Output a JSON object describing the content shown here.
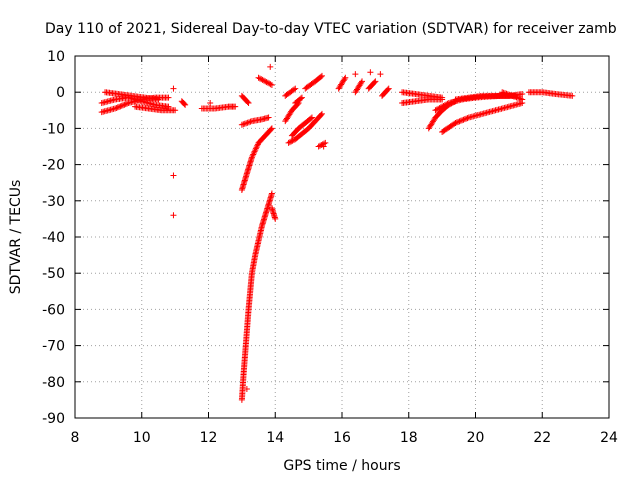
{
  "chart_data": {
    "type": "scatter",
    "title": "Day 110 of 2021, Sidereal Day-to-day VTEC variation (SDTVAR) for receiver zamb",
    "xlabel": "GPS time / hours",
    "ylabel": "SDTVAR / TECUs",
    "xlim": [
      8,
      24
    ],
    "ylim": [
      -90,
      10
    ],
    "xticks": [
      8,
      10,
      12,
      14,
      16,
      18,
      20,
      22,
      24
    ],
    "yticks": [
      10,
      0,
      -10,
      -20,
      -30,
      -40,
      -50,
      -60,
      -70,
      -80,
      -90
    ],
    "grid": true,
    "marker": "+",
    "color": "#ff0000",
    "segments": [
      {
        "x": [
          8.8,
          9.2,
          9.6,
          10.0,
          10.4,
          10.8
        ],
        "y": [
          -3,
          -2,
          -1.5,
          -2.5,
          -3.5,
          -4
        ]
      },
      {
        "x": [
          8.8,
          9.2,
          9.6,
          10.0,
          10.4,
          10.8
        ],
        "y": [
          -5.5,
          -4.5,
          -3,
          -2,
          -1.5,
          -1.5
        ]
      },
      {
        "x": [
          8.9,
          9.3,
          9.7,
          10.1,
          10.5
        ],
        "y": [
          0,
          -0.5,
          -1,
          -1.5,
          -2
        ]
      },
      {
        "x": [
          9.8,
          10.2,
          10.6,
          11.0
        ],
        "y": [
          -4,
          -4.5,
          -5,
          -5
        ]
      },
      {
        "x": [
          11.2,
          11.3
        ],
        "y": [
          -2.5,
          -3.5
        ]
      },
      {
        "x": [
          11.8,
          12.2,
          12.6,
          12.8
        ],
        "y": [
          -4.5,
          -4.5,
          -4,
          -4
        ]
      },
      {
        "x": [
          13.0,
          13.05,
          13.1,
          13.15,
          13.2,
          13.25,
          13.3,
          13.4,
          13.5,
          13.6,
          13.7,
          13.8,
          13.9
        ],
        "y": [
          -85,
          -78,
          -72,
          -66,
          -60,
          -55,
          -50,
          -45,
          -41,
          -37,
          -34,
          -31,
          -28
        ]
      },
      {
        "x": [
          13.0,
          13.1,
          13.2,
          13.3,
          13.4,
          13.5,
          13.6,
          13.7,
          13.8,
          13.9
        ],
        "y": [
          -27,
          -24,
          -21,
          -18,
          -16,
          -14,
          -13,
          -12,
          -11,
          -10
        ]
      },
      {
        "x": [
          13.0,
          13.3,
          13.6,
          13.8
        ],
        "y": [
          -9,
          -8,
          -7.5,
          -7
        ]
      },
      {
        "x": [
          13.0,
          13.2
        ],
        "y": [
          -1,
          -3
        ]
      },
      {
        "x": [
          13.5,
          13.9
        ],
        "y": [
          4,
          2
        ]
      },
      {
        "x": [
          13.9,
          14.0
        ],
        "y": [
          -32,
          -35
        ]
      },
      {
        "x": [
          14.3,
          14.6
        ],
        "y": [
          -1,
          1
        ]
      },
      {
        "x": [
          14.4,
          14.6,
          14.8,
          15.0,
          15.2,
          15.4
        ],
        "y": [
          -14,
          -13,
          -11.5,
          -10,
          -8,
          -6
        ]
      },
      {
        "x": [
          14.5,
          14.7,
          14.9,
          15.1
        ],
        "y": [
          -12,
          -10,
          -8.5,
          -7
        ]
      },
      {
        "x": [
          14.3,
          14.5,
          14.7
        ],
        "y": [
          -8,
          -5,
          -3
        ]
      },
      {
        "x": [
          14.6,
          14.8
        ],
        "y": [
          -3,
          -1.5
        ]
      },
      {
        "x": [
          14.9,
          15.2,
          15.4
        ],
        "y": [
          1,
          3,
          4.5
        ]
      },
      {
        "x": [
          15.3,
          15.5
        ],
        "y": [
          -15,
          -14
        ]
      },
      {
        "x": [
          15.9,
          16.1
        ],
        "y": [
          1,
          4
        ]
      },
      {
        "x": [
          16.4,
          16.6
        ],
        "y": [
          0,
          3
        ]
      },
      {
        "x": [
          16.8,
          17.0
        ],
        "y": [
          1,
          3
        ]
      },
      {
        "x": [
          17.2,
          17.4
        ],
        "y": [
          -1,
          1
        ]
      },
      {
        "x": [
          17.8,
          18.2,
          18.6,
          19.0
        ],
        "y": [
          0,
          -0.5,
          -1,
          -1.5
        ]
      },
      {
        "x": [
          17.8,
          18.2,
          18.6,
          19.0
        ],
        "y": [
          -3,
          -2.5,
          -2,
          -2
        ]
      },
      {
        "x": [
          18.6,
          18.8,
          19.0,
          19.2,
          19.4
        ],
        "y": [
          -10,
          -7,
          -5,
          -3.5,
          -2.5
        ]
      },
      {
        "x": [
          18.8,
          19.2,
          19.6,
          20.0,
          20.4,
          20.8,
          21.2
        ],
        "y": [
          -5,
          -3,
          -2,
          -1.5,
          -1.2,
          -1,
          -1
        ]
      },
      {
        "x": [
          19.0,
          19.4,
          19.8,
          20.2,
          20.6,
          21.0,
          21.4
        ],
        "y": [
          -11,
          -8.5,
          -7,
          -6,
          -5,
          -4,
          -3
        ]
      },
      {
        "x": [
          19.4,
          19.8,
          20.2,
          20.6,
          21.0,
          21.4
        ],
        "y": [
          -2,
          -1.5,
          -1,
          -1,
          -1,
          -0.5
        ]
      },
      {
        "x": [
          20.8,
          21.1,
          21.4
        ],
        "y": [
          0,
          -1,
          -2
        ]
      },
      {
        "x": [
          21.6,
          22.0,
          22.4,
          22.9
        ],
        "y": [
          0,
          0,
          -0.5,
          -1
        ]
      }
    ],
    "points": [
      {
        "x": 10.95,
        "y": 1
      },
      {
        "x": 10.95,
        "y": -23
      },
      {
        "x": 10.95,
        "y": -34
      },
      {
        "x": 12.05,
        "y": -3
      },
      {
        "x": 13.15,
        "y": -82
      },
      {
        "x": 13.85,
        "y": 7
      },
      {
        "x": 15.45,
        "y": -15
      },
      {
        "x": 16.4,
        "y": 5
      },
      {
        "x": 16.85,
        "y": 5.5
      },
      {
        "x": 17.15,
        "y": 5
      }
    ]
  }
}
